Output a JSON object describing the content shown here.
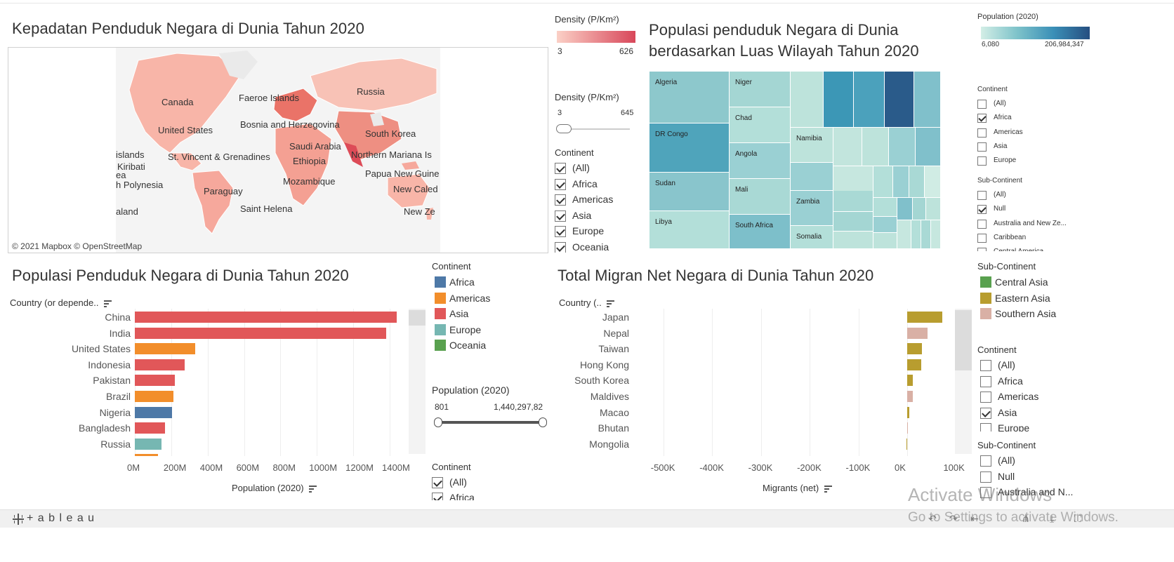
{
  "map_panel": {
    "title": "Kepadatan Penduduk Negara di Dunia Tahun 2020",
    "attribution": "© 2021 Mapbox  © OpenStreetMap",
    "labels": [
      "Canada",
      "Faeroe Islands",
      "Russia",
      "United States",
      "Bosnia and Herzegovina",
      "South Korea",
      "islands",
      "Saudi Arabia",
      "St. Vincent & Grenadines",
      "Northern Mariana Is",
      "Kiribati",
      "Ethiopia",
      "Papua New Guine",
      "h Polynesia",
      "Mozambique",
      "New Caled",
      "Paraguay",
      "ea",
      "Saint Helena",
      "New Ze",
      "aland"
    ]
  },
  "density_legend": {
    "title": "Density (P/Km²)",
    "min": "3",
    "max": "626"
  },
  "density_filter": {
    "title": "Density (P/Km²)",
    "min": "3",
    "max": "645",
    "level": 0.0
  },
  "continent_filter_1": {
    "title": "Continent",
    "items": [
      {
        "label": "(All)",
        "checked": true
      },
      {
        "label": "Africa",
        "checked": true
      },
      {
        "label": "Americas",
        "checked": true
      },
      {
        "label": "Asia",
        "checked": true
      },
      {
        "label": "Europe",
        "checked": true
      },
      {
        "label": "Oceania",
        "checked": true
      }
    ]
  },
  "treemap_panel": {
    "title_line1": "Populasi penduduk Negara di Dunia",
    "title_line2": "berdasarkan Luas Wilayah Tahun 2020",
    "labels": [
      "Algeria",
      "Niger",
      "Chad",
      "DR Congo",
      "Namibia",
      "Angola",
      "Sudan",
      "Mali",
      "Zambia",
      "Libya",
      "South Africa",
      "Somalia"
    ]
  },
  "population_legend": {
    "title": "Population (2020)",
    "min": "6,080",
    "max": "206,984,347"
  },
  "continent_filter_2": {
    "title": "Continent",
    "items": [
      {
        "label": "(All)",
        "checked": false
      },
      {
        "label": "Africa",
        "checked": true
      },
      {
        "label": "Americas",
        "checked": false
      },
      {
        "label": "Asia",
        "checked": false
      },
      {
        "label": "Europe",
        "checked": false
      }
    ]
  },
  "subcontinent_filter_1": {
    "title": "Sub-Continent",
    "items": [
      {
        "label": "(All)",
        "checked": false
      },
      {
        "label": "Null",
        "checked": true
      },
      {
        "label": "Australia and New Ze...",
        "checked": false
      },
      {
        "label": "Caribbean",
        "checked": false
      },
      {
        "label": "Central America",
        "checked": false
      }
    ]
  },
  "population_bar_panel": {
    "title": "Populasi Penduduk Negara di Dunia Tahun 2020",
    "row_header": "Country (or depende..",
    "axis_title": "Population (2020)",
    "ticks": [
      "0M",
      "200M",
      "400M",
      "600M",
      "800M",
      "1000M",
      "1200M",
      "1400M"
    ]
  },
  "continent_legend": {
    "title": "Continent",
    "items": [
      {
        "label": "Africa",
        "color": "#4e79a7"
      },
      {
        "label": "Americas",
        "color": "#f28e2b"
      },
      {
        "label": "Asia",
        "color": "#e15759"
      },
      {
        "label": "Europe",
        "color": "#76b7b2"
      },
      {
        "label": "Oceania",
        "color": "#59a14f"
      }
    ]
  },
  "population_filter": {
    "title": "Population (2020)",
    "min": "801",
    "max": "1,440,297,82"
  },
  "continent_filter_3": {
    "title": "Continent",
    "items": [
      {
        "label": "(All)",
        "checked": true
      },
      {
        "label": "Africa",
        "checked": true
      }
    ]
  },
  "migrant_panel": {
    "title": "Total Migran Net Negara di Dunia Tahun 2020",
    "row_header": "Country (..",
    "axis_title": "Migrants (net)",
    "ticks": [
      "-500K",
      "-400K",
      "-300K",
      "-200K",
      "-100K",
      "0K",
      "100K"
    ]
  },
  "subcontinent_legend": {
    "title": "Sub-Continent",
    "items": [
      {
        "label": "Central Asia",
        "color": "#59a14f"
      },
      {
        "label": "Eastern Asia",
        "color": "#b89d2f"
      },
      {
        "label": "Southern Asia",
        "color": "#d9b0a5"
      }
    ]
  },
  "continent_filter_4": {
    "title": "Continent",
    "items": [
      {
        "label": "(All)",
        "checked": false
      },
      {
        "label": "Africa",
        "checked": false
      },
      {
        "label": "Americas",
        "checked": false
      },
      {
        "label": "Asia",
        "checked": true
      },
      {
        "label": "Europe",
        "checked": false
      }
    ]
  },
  "subcontinent_filter_2": {
    "title": "Sub-Continent",
    "items": [
      {
        "label": "(All)",
        "checked": false
      },
      {
        "label": "Null",
        "checked": false
      },
      {
        "label": "Australia and N...",
        "checked": false
      }
    ]
  },
  "footer": {
    "brand": "+ a b l e a u",
    "watermark_line1": "Activate Windows",
    "watermark_line2": "Go to Settings to activate Windows."
  },
  "chart_data": [
    {
      "type": "bar",
      "title": "Populasi Penduduk Negara di Dunia Tahun 2020",
      "xlabel": "Population (2020)",
      "ylabel": "Country (or depende..",
      "categories": [
        "China",
        "India",
        "United States",
        "Indonesia",
        "Pakistan",
        "Brazil",
        "Nigeria",
        "Bangladesh",
        "Russia"
      ],
      "values": [
        1440,
        1380,
        331,
        274,
        221,
        213,
        206,
        165,
        146
      ],
      "continents": [
        "Asia",
        "Asia",
        "Americas",
        "Asia",
        "Asia",
        "Americas",
        "Africa",
        "Asia",
        "Europe"
      ],
      "xlim": [
        0,
        1450
      ],
      "unit": "M"
    },
    {
      "type": "bar",
      "title": "Total Migran Net Negara di Dunia Tahun 2020",
      "xlabel": "Migrants (net)",
      "ylabel": "Country (..",
      "categories": [
        "Japan",
        "Nepal",
        "Taiwan",
        "Hong Kong",
        "South Korea",
        "Maldives",
        "Macao",
        "Bhutan",
        "Mongolia"
      ],
      "values": [
        71560,
        41710,
        30001,
        29308,
        11731,
        11370,
        5000,
        320,
        -852
      ],
      "subcontinents": [
        "Eastern Asia",
        "Southern Asia",
        "Eastern Asia",
        "Eastern Asia",
        "Eastern Asia",
        "Southern Asia",
        "Eastern Asia",
        "Southern Asia",
        "Eastern Asia"
      ],
      "xlim": [
        -560000,
        130000
      ]
    }
  ]
}
